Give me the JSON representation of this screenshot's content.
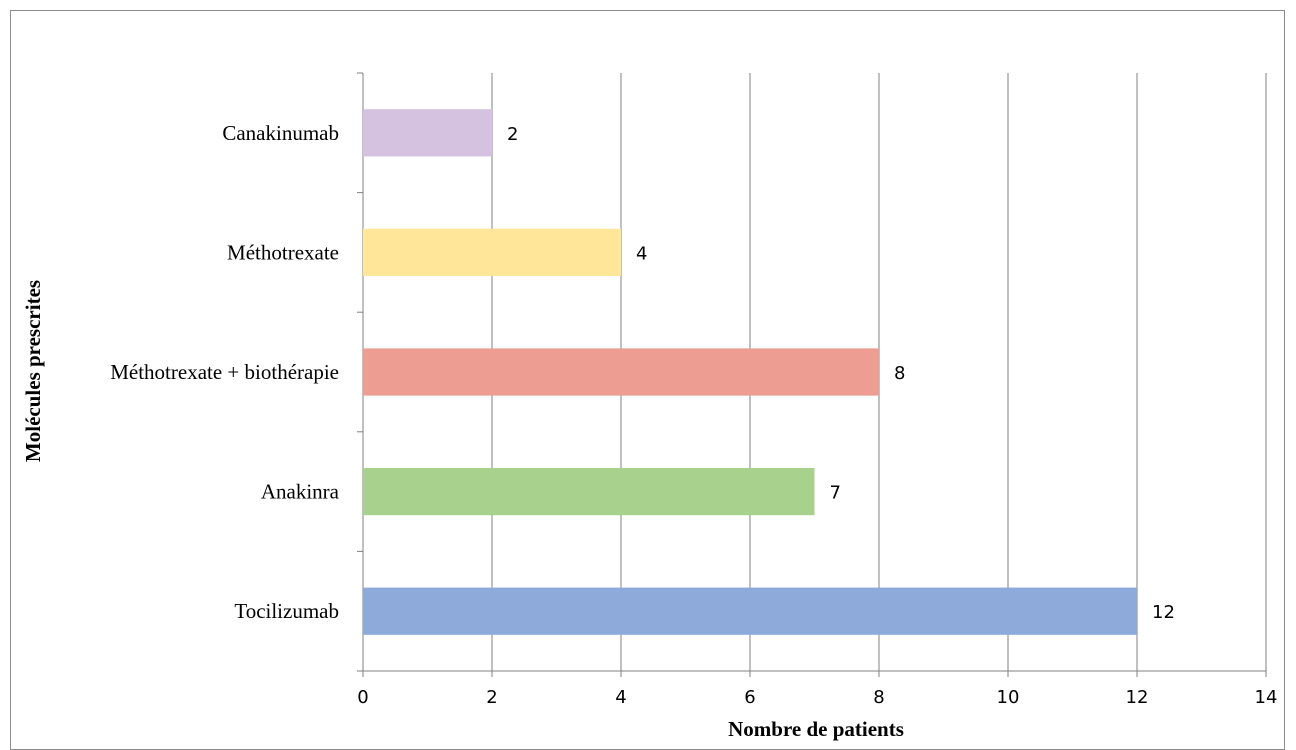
{
  "chart_data": {
    "type": "bar",
    "orientation": "horizontal",
    "categories": [
      "Tocilizumab",
      "Anakinra",
      "Méthotrexate + biothérapie",
      "Méthotrexate",
      "Canakinumab"
    ],
    "values": [
      12,
      7,
      8,
      4,
      2
    ],
    "colors": [
      "#8eaadb",
      "#a9d18e",
      "#ee9d93",
      "#ffe699",
      "#d5c2e0"
    ],
    "xlabel": "Nombre de patients",
    "ylabel": "Molécules prescrites",
    "xlim": [
      0,
      14
    ],
    "xticks": [
      0,
      2,
      4,
      6,
      8,
      10,
      12,
      14
    ],
    "grid": "vertical",
    "data_labels": true,
    "legend": "none"
  }
}
